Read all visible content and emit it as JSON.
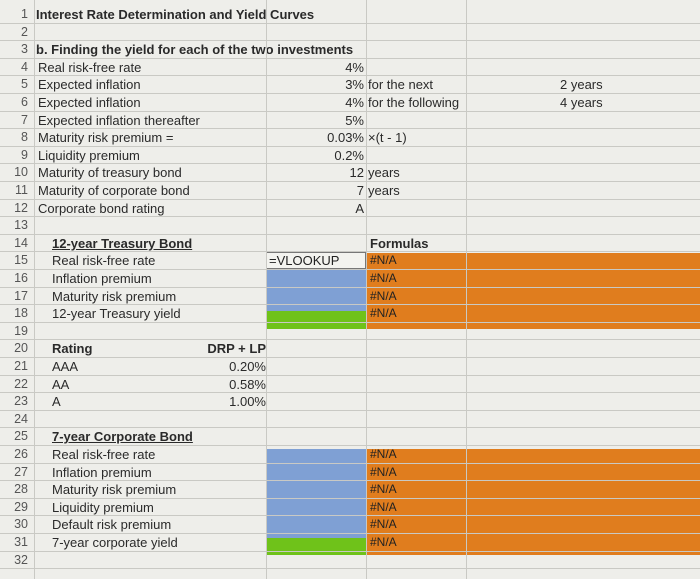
{
  "sheet": {
    "rows": [
      {
        "n": "1",
        "a": "Interest Rate Determination and Yield Curves"
      },
      {
        "n": "2"
      },
      {
        "n": "3",
        "a": "b. Finding the yield for each of the two investments"
      },
      {
        "n": "4",
        "a": "Real risk-free rate",
        "b": "4%"
      },
      {
        "n": "5",
        "a": "Expected inflation",
        "b": "3%",
        "c": "for the next",
        "d": "2 years"
      },
      {
        "n": "6",
        "a": "Expected inflation",
        "b": "4%",
        "c": "for the following",
        "d": "4 years"
      },
      {
        "n": "7",
        "a": "Expected inflation thereafter",
        "b": "5%"
      },
      {
        "n": "8",
        "a": "Maturity risk premium =",
        "b": "0.03%",
        "c": "×(t - 1)"
      },
      {
        "n": "9",
        "a": "Liquidity premium",
        "b": "0.2%"
      },
      {
        "n": "10",
        "a": "Maturity of treasury bond",
        "b": "12",
        "c": "years"
      },
      {
        "n": "11",
        "a": "Maturity of corporate bond",
        "b": "7",
        "c": "years"
      },
      {
        "n": "12",
        "a": "Corporate bond rating",
        "b": "A"
      },
      {
        "n": "13"
      },
      {
        "n": "14",
        "a": "12-year Treasury Bond",
        "f": "Formulas"
      },
      {
        "n": "15",
        "a": "Real risk-free rate",
        "e": "=VLOOKUP",
        "f": "#N/A"
      },
      {
        "n": "16",
        "a": "Inflation premium",
        "f": "#N/A"
      },
      {
        "n": "17",
        "a": "Maturity risk premium",
        "f": "#N/A"
      },
      {
        "n": "18",
        "a": "12-year Treasury yield",
        "f": "#N/A"
      },
      {
        "n": "19"
      },
      {
        "n": "20",
        "a": "Rating",
        "g": "DRP + LP"
      },
      {
        "n": "21",
        "a": "AAA",
        "g": "0.20%"
      },
      {
        "n": "22",
        "a": "AA",
        "g": "0.58%"
      },
      {
        "n": "23",
        "a": "A",
        "g": "1.00%"
      },
      {
        "n": "24"
      },
      {
        "n": "25",
        "a": "7-year Corporate Bond"
      },
      {
        "n": "26",
        "a": "Real risk-free rate",
        "f": "#N/A"
      },
      {
        "n": "27",
        "a": "Inflation premium",
        "f": "#N/A"
      },
      {
        "n": "28",
        "a": "Maturity risk premium",
        "f": "#N/A"
      },
      {
        "n": "29",
        "a": "Liquidity premium",
        "f": "#N/A"
      },
      {
        "n": "30",
        "a": "Default risk premium",
        "f": "#N/A"
      },
      {
        "n": "31",
        "a": "7-year corporate yield",
        "f": "#N/A"
      },
      {
        "n": "32"
      }
    ]
  },
  "colors": {
    "orange": "#e07d1e",
    "blue": "#7fa0d4",
    "green": "#6fc21a"
  }
}
